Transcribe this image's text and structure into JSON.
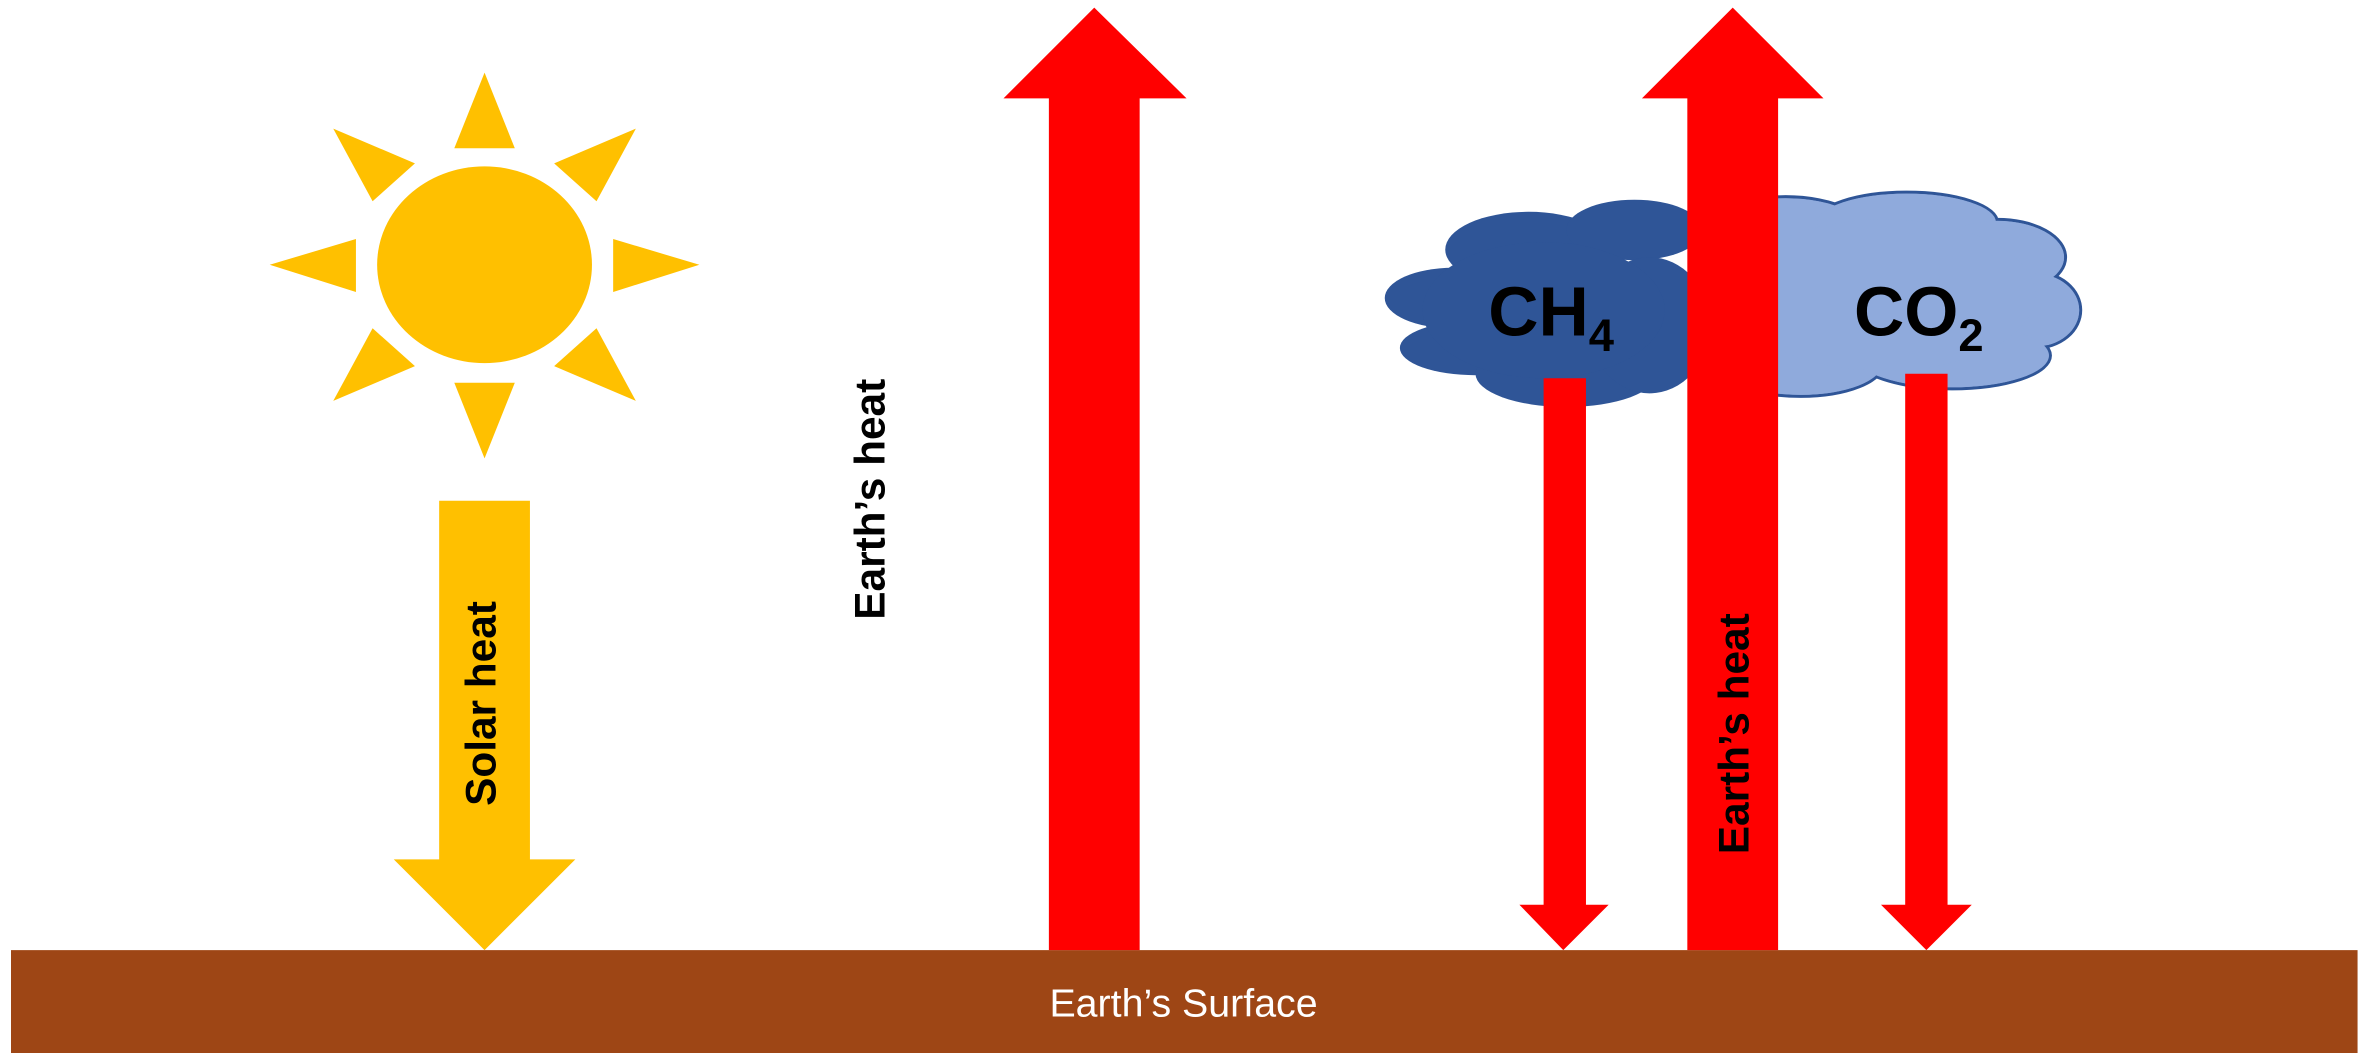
{
  "labels": {
    "solar_heat": "Solar heat",
    "earths_heat_direct": "Earth’s heat",
    "earths_heat_trapped": "Earth’s heat",
    "surface": "Earth’s Surface"
  },
  "molecules": [
    {
      "base": "CH",
      "sub": "4"
    },
    {
      "base": "CO",
      "sub": "2"
    }
  ]
}
